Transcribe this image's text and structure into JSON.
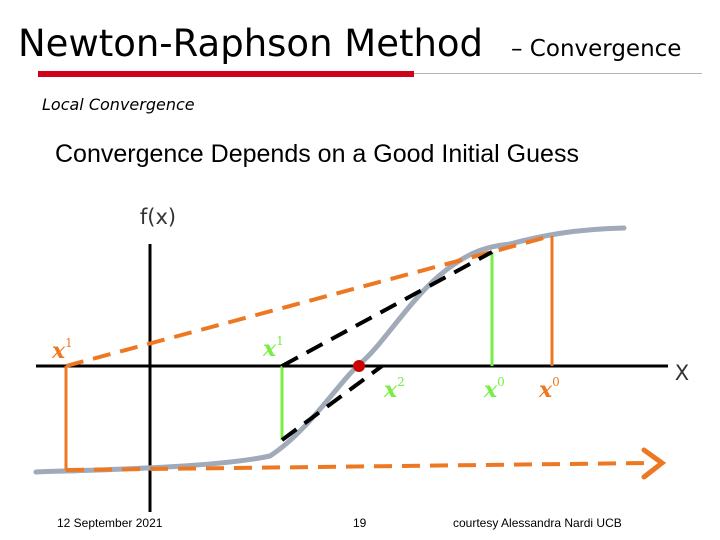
{
  "slide": {
    "title": "Newton-Raphson Method",
    "title_suffix": "– Convergence",
    "section_label": "Local Convergence",
    "heading": "Convergence Depends on a Good Initial Guess",
    "colors": {
      "accent_red": "#d0021b",
      "curve_gray": "#a0aab8",
      "orange": "#ee7722",
      "green": "#77ee44",
      "black_dashed": "#000000",
      "root_marker": "#cc0000"
    }
  },
  "diagram": {
    "y_axis_label": "f(x)",
    "x_axis_label": "X",
    "labels": {
      "x1_left": "x",
      "x1_left_sup": "1",
      "x1_mid": "x",
      "x1_mid_sup": "1",
      "x2": "x",
      "x2_sup": "2",
      "x0_green": "x",
      "x0_green_sup": "0",
      "x0_orange": "x",
      "x0_orange_sup": "0"
    }
  },
  "footer": {
    "date": "12 September 2021",
    "page_number": "19",
    "credit": "courtesy Alessandra Nardi UCB"
  }
}
